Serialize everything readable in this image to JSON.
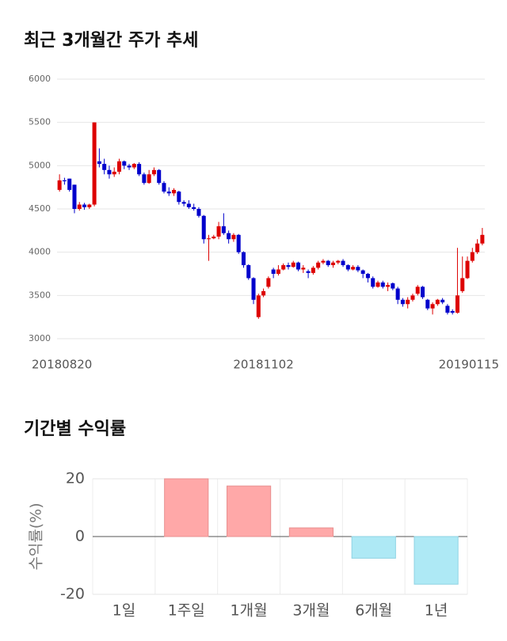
{
  "chart_data": [
    {
      "type": "candlestick",
      "title": "최근 3개월간 주가 추세",
      "categories": [
        "20180820",
        null,
        null,
        null,
        null,
        null,
        null,
        null,
        null,
        null,
        null,
        null,
        null,
        null,
        null,
        null,
        null,
        null,
        null,
        null,
        null,
        null,
        null,
        null,
        null,
        null,
        null,
        null,
        null,
        null,
        null,
        null,
        null,
        null,
        null,
        null,
        null,
        null,
        null,
        null,
        null,
        "20181102",
        null,
        null,
        null,
        null,
        null,
        null,
        null,
        null,
        null,
        null,
        null,
        null,
        null,
        null,
        null,
        null,
        null,
        null,
        null,
        null,
        null,
        null,
        null,
        null,
        null,
        null,
        null,
        null,
        null,
        null,
        null,
        null,
        null,
        null,
        null,
        null,
        null,
        null,
        null,
        null,
        null,
        null,
        null,
        "20190115"
      ],
      "open": [
        4720,
        4830,
        4850,
        4780,
        4500,
        4550,
        4520,
        4550,
        5050,
        5020,
        4950,
        4900,
        4930,
        5050,
        5000,
        4980,
        5020,
        4900,
        4800,
        4900,
        4950,
        4800,
        4700,
        4680,
        4700,
        4580,
        4560,
        4520,
        4500,
        4420,
        4150,
        4160,
        4180,
        4300,
        4220,
        4150,
        4200,
        4000,
        3850,
        3700,
        3250,
        3500,
        3600,
        3800,
        3750,
        3800,
        3850,
        3830,
        3880,
        3800,
        3780,
        3760,
        3820,
        3880,
        3900,
        3850,
        3880,
        3900,
        3850,
        3800,
        3830,
        3790,
        3750,
        3700,
        3600,
        3650,
        3600,
        3640,
        3580,
        3450,
        3400,
        3450,
        3520,
        3600,
        3450,
        3350,
        3400,
        3450,
        3380,
        3320,
        3300,
        3550,
        3700,
        3900,
        4000,
        4100
      ],
      "high": [
        4900,
        4860,
        4850,
        4780,
        4580,
        4570,
        4560,
        5500,
        5200,
        5080,
        5000,
        4980,
        5080,
        5060,
        5020,
        5030,
        5040,
        4920,
        4950,
        4980,
        4960,
        4820,
        4750,
        4740,
        4710,
        4600,
        4600,
        4560,
        4520,
        4430,
        4200,
        4200,
        4350,
        4450,
        4250,
        4220,
        4210,
        4010,
        3860,
        3710,
        3520,
        3580,
        3720,
        3820,
        3850,
        3870,
        3880,
        3900,
        3890,
        3850,
        3800,
        3840,
        3900,
        3920,
        3910,
        3900,
        3910,
        3920,
        3860,
        3850,
        3850,
        3800,
        3760,
        3720,
        3670,
        3670,
        3650,
        3650,
        3600,
        3470,
        3480,
        3520,
        3620,
        3610,
        3460,
        3420,
        3460,
        3470,
        3400,
        3340,
        4050,
        3950,
        3950,
        4050,
        4150,
        4280
      ],
      "low": [
        4700,
        4780,
        4700,
        4450,
        4480,
        4490,
        4500,
        4530,
        4980,
        4900,
        4850,
        4870,
        4900,
        4960,
        4950,
        4960,
        4880,
        4780,
        4790,
        4880,
        4780,
        4680,
        4650,
        4650,
        4550,
        4530,
        4500,
        4480,
        4400,
        4100,
        3900,
        4150,
        4150,
        4200,
        4100,
        4120,
        3980,
        3820,
        3680,
        3400,
        3230,
        3480,
        3580,
        3700,
        3730,
        3790,
        3800,
        3820,
        3780,
        3760,
        3700,
        3740,
        3800,
        3860,
        3830,
        3820,
        3860,
        3830,
        3780,
        3790,
        3770,
        3700,
        3650,
        3580,
        3590,
        3580,
        3550,
        3560,
        3400,
        3370,
        3350,
        3430,
        3500,
        3460,
        3330,
        3280,
        3380,
        3400,
        3280,
        3280,
        3290,
        3530,
        3690,
        3880,
        3980,
        4080
      ],
      "close": [
        4830,
        4820,
        4720,
        4500,
        4550,
        4520,
        4550,
        5500,
        5020,
        4950,
        4900,
        4930,
        5050,
        5000,
        4980,
        5020,
        4900,
        4800,
        4900,
        4950,
        4800,
        4700,
        4680,
        4720,
        4580,
        4560,
        4520,
        4500,
        4420,
        4150,
        4160,
        4180,
        4300,
        4220,
        4150,
        4200,
        4000,
        3850,
        3700,
        3450,
        3500,
        3550,
        3700,
        3750,
        3800,
        3850,
        3830,
        3880,
        3800,
        3820,
        3760,
        3820,
        3880,
        3900,
        3850,
        3880,
        3900,
        3850,
        3800,
        3830,
        3790,
        3750,
        3700,
        3600,
        3650,
        3600,
        3620,
        3580,
        3450,
        3400,
        3450,
        3500,
        3600,
        3480,
        3350,
        3400,
        3450,
        3420,
        3300,
        3300,
        3500,
        3700,
        3900,
        4000,
        4100,
        4200
      ],
      "up_color": "#dd0000",
      "down_color": "#0000cc",
      "ylim": [
        3000,
        6000
      ],
      "yticks": [
        3000,
        3500,
        4000,
        4500,
        5000,
        5500,
        6000
      ],
      "grid": true
    },
    {
      "type": "bar",
      "title": "기간별 수익률",
      "y_label": "수익률(%)",
      "categories": [
        "1일",
        "1주일",
        "1개월",
        "3개월",
        "6개월",
        "1년"
      ],
      "values": [
        0,
        20,
        17.5,
        3,
        -7.5,
        -16.5
      ],
      "positive_color": "#ffa8a8",
      "negative_color": "#aee9f5",
      "ylim": [
        -20,
        20
      ],
      "yticks": [
        -20,
        0,
        20
      ],
      "grid": true
    }
  ]
}
